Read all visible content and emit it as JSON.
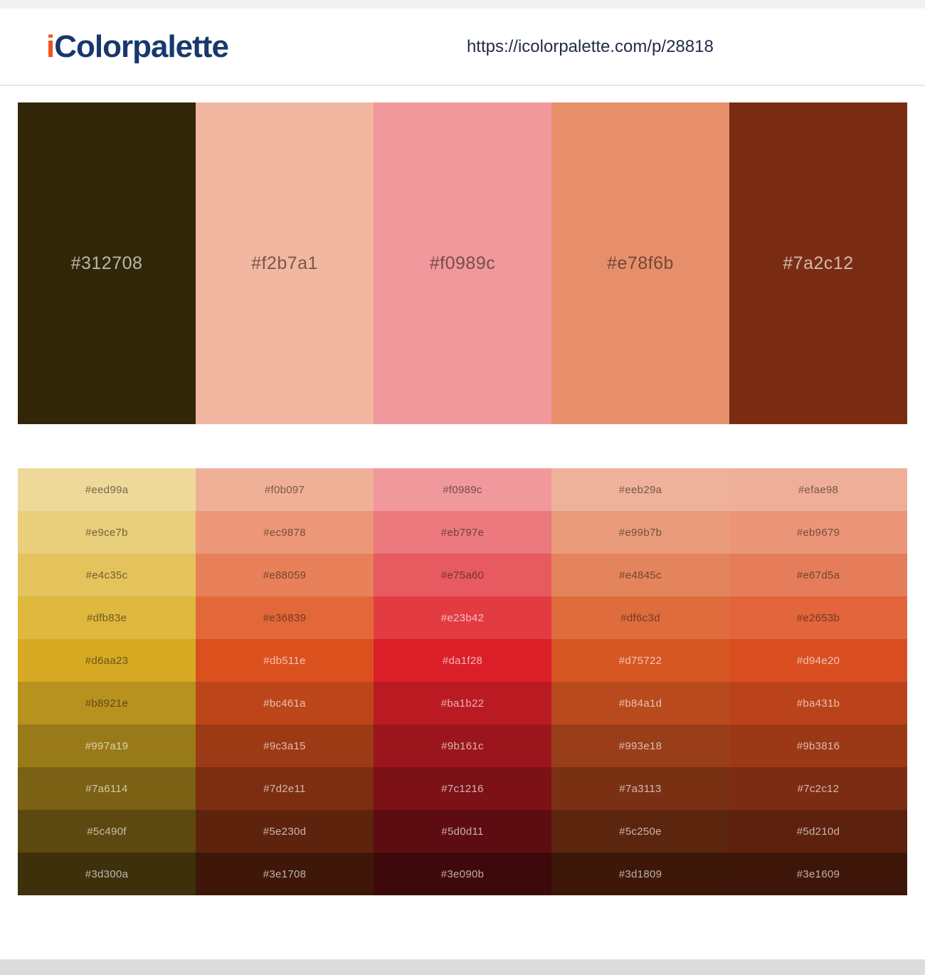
{
  "header": {
    "logo_prefix": "i",
    "logo_rest": "Colorpalette",
    "url": "https://icolorpalette.com/p/28818"
  },
  "palette": {
    "colors": [
      "#312708",
      "#f2b7a1",
      "#f0989c",
      "#e78f6b",
      "#7a2c12"
    ]
  },
  "shades": {
    "rows": [
      [
        "#eed99a",
        "#f0b097",
        "#f0989c",
        "#eeb29a",
        "#efae98"
      ],
      [
        "#e9ce7b",
        "#ec9878",
        "#eb797e",
        "#e99b7b",
        "#eb9679"
      ],
      [
        "#e4c35c",
        "#e88059",
        "#e75a60",
        "#e4845c",
        "#e67d5a"
      ],
      [
        "#dfb83e",
        "#e36839",
        "#e23b42",
        "#df6c3d",
        "#e2653b"
      ],
      [
        "#d6aa23",
        "#db511e",
        "#da1f28",
        "#d75722",
        "#d94e20"
      ],
      [
        "#b8921e",
        "#bc461a",
        "#ba1b22",
        "#b84a1d",
        "#ba431b"
      ],
      [
        "#997a19",
        "#9c3a15",
        "#9b161c",
        "#993e18",
        "#9b3816"
      ],
      [
        "#7a6114",
        "#7d2e11",
        "#7c1216",
        "#7a3113",
        "#7c2c12"
      ],
      [
        "#5c490f",
        "#5e230d",
        "#5d0d11",
        "#5c250e",
        "#5d210d"
      ],
      [
        "#3d300a",
        "#3e1708",
        "#3e090b",
        "#3d1809",
        "#3e1609"
      ]
    ]
  },
  "colors": {
    "logo_accent": "#f4511e",
    "logo_navy": "#17386d",
    "url_text": "#232c47",
    "top_strip": "#f1f1f1",
    "footer_bar": "#dcdcdc"
  }
}
